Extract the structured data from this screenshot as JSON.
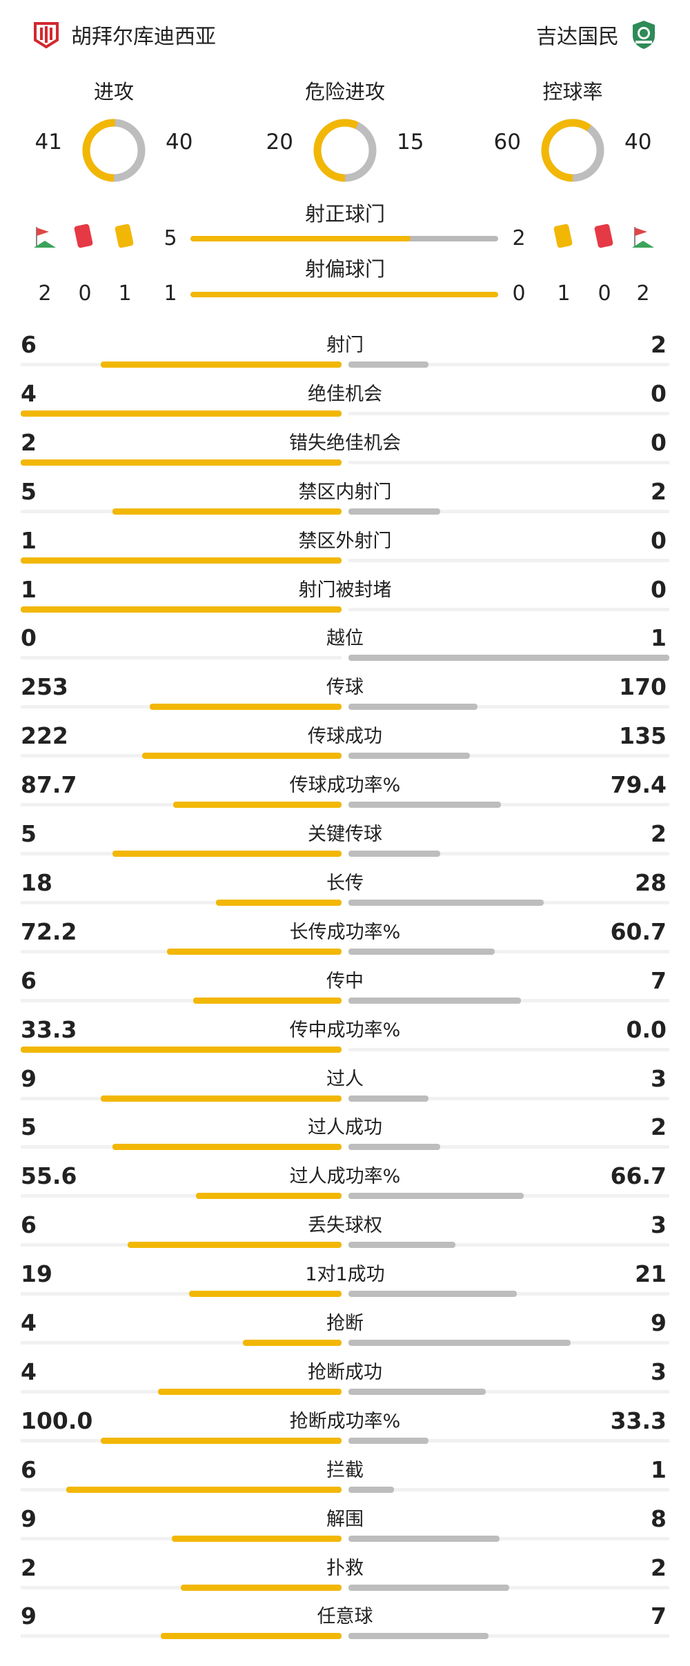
{
  "home_team": {
    "name": "胡拜尔库迪西亚",
    "logo": "club-crest-red-icon"
  },
  "away_team": {
    "name": "吉达国民",
    "logo": "club-crest-green-icon"
  },
  "colors": {
    "home": "#f2b705",
    "away": "#bdbdbd"
  },
  "donuts": [
    {
      "label": "进攻",
      "home": 41,
      "away": 40
    },
    {
      "label": "危险进攻",
      "home": 20,
      "away": 15
    },
    {
      "label": "控球率",
      "home": 60,
      "away": 40
    }
  ],
  "shots_on_target": {
    "label": "射正球门",
    "home": 5,
    "away": 2
  },
  "shots_off_target": {
    "label": "射偏球门",
    "home": 1,
    "away": 0
  },
  "home_counts": {
    "corner": 2,
    "red": 0,
    "yellow": 1
  },
  "away_counts": {
    "yellow": 1,
    "red": 0,
    "corner": 2
  },
  "stats": [
    {
      "label": "射门",
      "home": "6",
      "away": "2"
    },
    {
      "label": "绝佳机会",
      "home": "4",
      "away": "0"
    },
    {
      "label": "错失绝佳机会",
      "home": "2",
      "away": "0"
    },
    {
      "label": "禁区内射门",
      "home": "5",
      "away": "2"
    },
    {
      "label": "禁区外射门",
      "home": "1",
      "away": "0"
    },
    {
      "label": "射门被封堵",
      "home": "1",
      "away": "0"
    },
    {
      "label": "越位",
      "home": "0",
      "away": "1"
    },
    {
      "label": "传球",
      "home": "253",
      "away": "170"
    },
    {
      "label": "传球成功",
      "home": "222",
      "away": "135"
    },
    {
      "label": "传球成功率%",
      "home": "87.7",
      "away": "79.4"
    },
    {
      "label": "关键传球",
      "home": "5",
      "away": "2"
    },
    {
      "label": "长传",
      "home": "18",
      "away": "28"
    },
    {
      "label": "长传成功率%",
      "home": "72.2",
      "away": "60.7"
    },
    {
      "label": "传中",
      "home": "6",
      "away": "7"
    },
    {
      "label": "传中成功率%",
      "home": "33.3",
      "away": "0.0"
    },
    {
      "label": "过人",
      "home": "9",
      "away": "3"
    },
    {
      "label": "过人成功",
      "home": "5",
      "away": "2"
    },
    {
      "label": "过人成功率%",
      "home": "55.6",
      "away": "66.7"
    },
    {
      "label": "丢失球权",
      "home": "6",
      "away": "3"
    },
    {
      "label": "1对1成功",
      "home": "19",
      "away": "21"
    },
    {
      "label": "抢断",
      "home": "4",
      "away": "9"
    },
    {
      "label": "抢断成功",
      "home": "4",
      "away": "3"
    },
    {
      "label": "抢断成功率%",
      "home": "100.0",
      "away": "33.3"
    },
    {
      "label": "拦截",
      "home": "6",
      "away": "1"
    },
    {
      "label": "解围",
      "home": "9",
      "away": "8"
    },
    {
      "label": "扑救",
      "home": "2",
      "away": "2"
    },
    {
      "label": "任意球",
      "home": "9",
      "away": "7"
    }
  ]
}
